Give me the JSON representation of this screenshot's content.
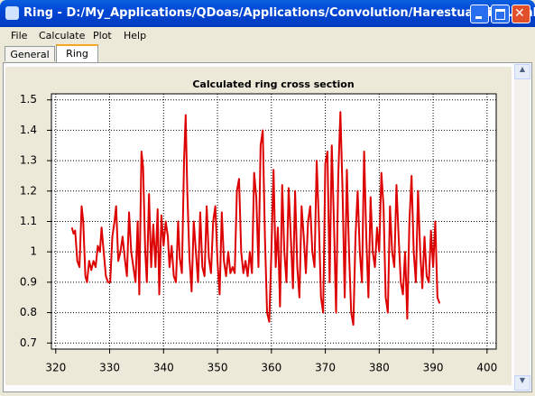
{
  "window": {
    "title": "Ring - D:/My_Applications/QDoas/Applications/Convolution/Harestua_Ring.xml"
  },
  "menu": [
    "File",
    "Calculate",
    "Plot",
    "Help"
  ],
  "tabs": [
    "General",
    "Ring"
  ],
  "chart_data": {
    "type": "line",
    "title": "Calculated ring cross section",
    "x": [
      323.0,
      323.3,
      323.6,
      324.0,
      324.4,
      324.8,
      325.1,
      325.5,
      325.8,
      326.2,
      326.6,
      327.0,
      327.4,
      327.8,
      328.2,
      328.5,
      328.9,
      329.3,
      329.7,
      330.1,
      330.5,
      330.9,
      331.2,
      331.6,
      332.0,
      332.4,
      332.8,
      333.2,
      333.6,
      334.0,
      334.4,
      334.8,
      335.2,
      335.5,
      335.9,
      336.2,
      336.6,
      336.9,
      337.3,
      337.7,
      338.1,
      338.5,
      338.9,
      339.2,
      339.6,
      340.0,
      340.4,
      340.8,
      341.1,
      341.5,
      341.9,
      342.3,
      342.7,
      343.0,
      343.4,
      343.8,
      344.1,
      344.4,
      344.8,
      345.2,
      345.6,
      346.0,
      346.4,
      346.8,
      347.2,
      347.6,
      348.0,
      348.4,
      348.8,
      349.2,
      349.6,
      350.0,
      350.4,
      350.8,
      351.2,
      351.6,
      352.0,
      352.4,
      352.8,
      353.2,
      353.6,
      354.0,
      354.4,
      354.8,
      355.2,
      355.6,
      356.0,
      356.4,
      356.8,
      357.2,
      357.6,
      358.0,
      358.4,
      358.8,
      359.2,
      359.6,
      360.0,
      360.4,
      360.8,
      361.2,
      361.6,
      362.0,
      362.4,
      362.8,
      363.2,
      363.6,
      364.0,
      364.4,
      364.8,
      365.2,
      365.6,
      366.0,
      366.4,
      366.8,
      367.2,
      367.6,
      368.0,
      368.4,
      368.8,
      369.2,
      369.6,
      370.0,
      370.4,
      370.8,
      371.2,
      371.6,
      372.0,
      372.4,
      372.8,
      373.2,
      373.6,
      374.0,
      374.4,
      374.8,
      375.2,
      375.6,
      376.0,
      376.4,
      376.8,
      377.2,
      377.6,
      378.0,
      378.4,
      378.8,
      379.2,
      379.6,
      380.0,
      380.4,
      380.8,
      381.2,
      381.6,
      382.0,
      382.4,
      382.8,
      383.2,
      383.6,
      384.0,
      384.4,
      384.8,
      385.2,
      385.6,
      386.0,
      386.4,
      386.8,
      387.2,
      387.6,
      388.0,
      388.4,
      388.8,
      389.2,
      389.6,
      390.0,
      390.4,
      390.8,
      391.2
    ],
    "series": [
      {
        "name": "Ring",
        "color": "#dd0000",
        "values": [
          1.08,
          1.06,
          1.07,
          0.97,
          0.95,
          1.15,
          1.1,
          0.92,
          0.9,
          0.97,
          0.94,
          0.97,
          0.95,
          1.02,
          1.0,
          1.08,
          1.0,
          0.92,
          0.9,
          0.9,
          1.05,
          1.1,
          1.15,
          0.97,
          1.0,
          1.05,
          0.98,
          0.92,
          1.13,
          1.0,
          0.95,
          0.9,
          1.1,
          0.86,
          1.33,
          1.28,
          1.0,
          0.9,
          1.19,
          0.95,
          1.09,
          0.95,
          1.14,
          0.86,
          1.12,
          1.02,
          1.1,
          1.05,
          0.95,
          1.02,
          0.92,
          0.9,
          1.1,
          0.98,
          0.93,
          1.3,
          1.45,
          1.2,
          0.98,
          0.87,
          1.1,
          1.0,
          0.9,
          1.13,
          0.95,
          0.92,
          1.15,
          0.98,
          0.93,
          1.1,
          1.15,
          0.97,
          0.86,
          1.13,
          0.97,
          0.92,
          1.0,
          0.93,
          0.95,
          0.93,
          1.2,
          1.24,
          1.0,
          0.93,
          0.97,
          0.92,
          1.0,
          0.93,
          1.26,
          1.18,
          0.95,
          1.35,
          1.4,
          1.05,
          0.8,
          0.77,
          1.0,
          1.27,
          0.95,
          1.08,
          0.82,
          1.22,
          1.0,
          0.9,
          1.21,
          1.05,
          0.88,
          1.2,
          0.95,
          0.85,
          1.15,
          1.05,
          0.93,
          1.1,
          1.15,
          1.0,
          0.95,
          1.3,
          1.1,
          0.85,
          0.8,
          1.29,
          1.33,
          0.9,
          1.35,
          1.1,
          0.8,
          1.25,
          1.46,
          1.2,
          0.85,
          1.27,
          1.0,
          0.8,
          0.76,
          1.05,
          1.2,
          1.0,
          0.9,
          1.33,
          1.05,
          0.85,
          1.18,
          1.0,
          0.95,
          1.08,
          1.0,
          1.26,
          1.15,
          0.85,
          0.8,
          1.15,
          1.0,
          0.95,
          1.22,
          1.05,
          0.9,
          0.86,
          1.0,
          0.78,
          1.1,
          1.25,
          1.0,
          0.9,
          1.2,
          1.0,
          0.88,
          1.05,
          0.92,
          0.9,
          1.07,
          0.95,
          1.1,
          0.85,
          0.83
        ]
      }
    ],
    "xlim": [
      319.2,
      401.7
    ],
    "ylim": [
      0.68,
      1.52
    ],
    "xticks": [
      320,
      330,
      340,
      350,
      360,
      370,
      380,
      390,
      400
    ],
    "yticks": [
      0.7,
      0.8,
      0.9,
      1,
      1.1,
      1.2,
      1.3,
      1.4,
      1.5
    ],
    "grid": true
  }
}
